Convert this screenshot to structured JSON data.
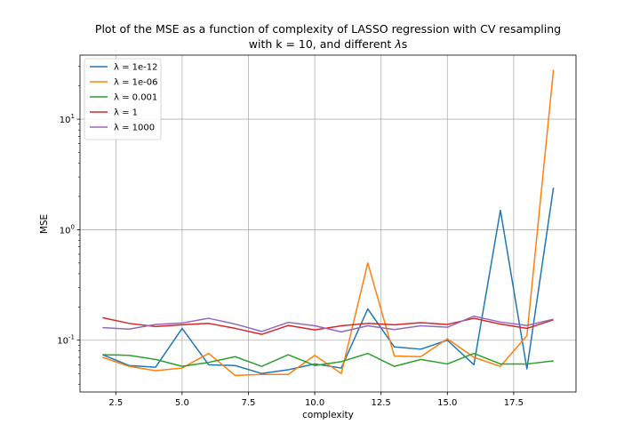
{
  "chart_data": {
    "type": "line",
    "title": [
      "Plot of the MSE as a function of complexity of LASSO regression with CV resampling",
      "with k = 10, and different λs"
    ],
    "xlabel": "complexity",
    "ylabel": "MSE",
    "xscale": "linear",
    "yscale": "log",
    "xlim": [
      1.15,
      19.85
    ],
    "ylim": [
      0.034,
      38
    ],
    "xticks": [
      2.5,
      5.0,
      7.5,
      10.0,
      12.5,
      15.0,
      17.5
    ],
    "xtick_labels": [
      "2.5",
      "5.0",
      "7.5",
      "10.0",
      "12.5",
      "15.0",
      "17.5"
    ],
    "yticks": [
      0.1,
      1,
      10
    ],
    "grid": true,
    "legend_position": "top-left",
    "x": [
      2,
      3,
      4,
      5,
      6,
      7,
      8,
      9,
      10,
      11,
      12,
      13,
      14,
      15,
      16,
      17,
      18,
      19
    ],
    "series": [
      {
        "name": "λ = 1e-12",
        "color": "#1f77b4",
        "values": [
          0.074,
          0.059,
          0.057,
          0.128,
          0.06,
          0.059,
          0.05,
          0.054,
          0.061,
          0.056,
          0.192,
          0.087,
          0.083,
          0.1,
          0.06,
          1.5,
          0.055,
          2.4
        ]
      },
      {
        "name": "λ = 1e-06",
        "color": "#ff7f0e",
        "values": [
          0.07,
          0.058,
          0.053,
          0.056,
          0.076,
          0.048,
          0.049,
          0.049,
          0.073,
          0.05,
          0.5,
          0.072,
          0.071,
          0.103,
          0.07,
          0.058,
          0.11,
          28
        ]
      },
      {
        "name": "λ = 0.001",
        "color": "#2ca02c",
        "values": [
          0.074,
          0.073,
          0.067,
          0.058,
          0.063,
          0.071,
          0.058,
          0.074,
          0.059,
          0.064,
          0.076,
          0.058,
          0.067,
          0.061,
          0.076,
          0.061,
          0.061,
          0.065
        ]
      },
      {
        "name": "λ = 1",
        "color": "#d62728",
        "values": [
          0.16,
          0.142,
          0.133,
          0.138,
          0.142,
          0.128,
          0.113,
          0.136,
          0.124,
          0.135,
          0.142,
          0.138,
          0.144,
          0.139,
          0.158,
          0.14,
          0.128,
          0.153
        ]
      },
      {
        "name": "λ = 1000",
        "color": "#9467bd",
        "values": [
          0.13,
          0.126,
          0.139,
          0.143,
          0.158,
          0.14,
          0.12,
          0.145,
          0.135,
          0.119,
          0.135,
          0.125,
          0.135,
          0.131,
          0.165,
          0.146,
          0.136,
          0.155
        ]
      }
    ]
  }
}
